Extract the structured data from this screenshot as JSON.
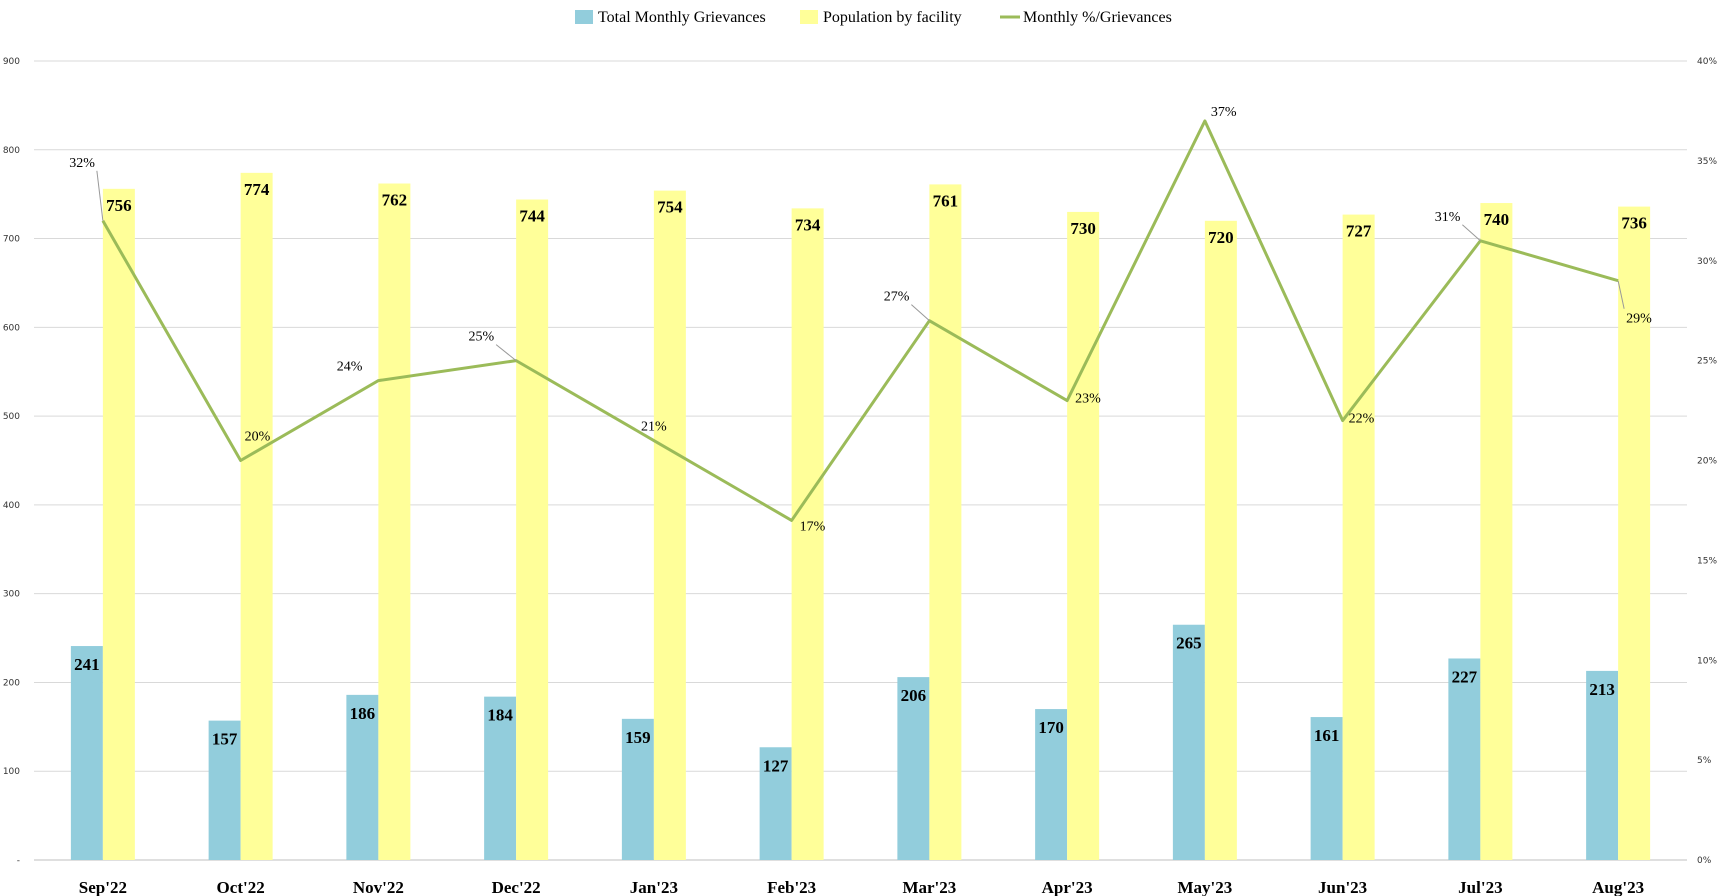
{
  "chart_data": {
    "type": "bar",
    "title": "",
    "xlabel": "",
    "ylabel": "",
    "y2label": "",
    "categories": [
      "Sep'22",
      "Oct'22",
      "Nov'22",
      "Dec'22",
      "Jan'23",
      "Feb'23",
      "Mar'23",
      "Apr'23",
      "May'23",
      "Jun'23",
      "Jul'23",
      "Aug'23"
    ],
    "series": [
      {
        "name": "Total Monthly Grievances",
        "type": "bar",
        "axis": "left",
        "color": "#92cddc",
        "values": [
          241,
          157,
          186,
          184,
          159,
          127,
          206,
          170,
          265,
          161,
          227,
          213
        ]
      },
      {
        "name": "Population by facility",
        "type": "bar",
        "axis": "left",
        "color": "#ffff99",
        "values": [
          756,
          774,
          762,
          744,
          754,
          734,
          761,
          730,
          720,
          727,
          740,
          736
        ]
      },
      {
        "name": "Monthly %/Grievances",
        "type": "line",
        "axis": "right",
        "color": "#9bbb59",
        "values": [
          0.32,
          0.2,
          0.24,
          0.25,
          0.21,
          0.17,
          0.27,
          0.23,
          0.37,
          0.22,
          0.31,
          0.29
        ],
        "labels": [
          "32%",
          "20%",
          "24%",
          "25%",
          "21%",
          "17%",
          "27%",
          "23%",
          "37%",
          "22%",
          "31%",
          "29%"
        ]
      }
    ],
    "ylim": [
      0,
      900
    ],
    "yticks": [
      0,
      100,
      200,
      300,
      400,
      500,
      600,
      700,
      800,
      900
    ],
    "ytick_labels": [
      "-",
      "100",
      "200",
      "300",
      "400",
      "500",
      "600",
      "700",
      "800",
      "900"
    ],
    "y2lim": [
      0,
      0.4
    ],
    "y2ticks": [
      0,
      0.05,
      0.1,
      0.15,
      0.2,
      0.25,
      0.3,
      0.35,
      0.4
    ],
    "y2tick_labels": [
      "0%",
      "5%",
      "10%",
      "15%",
      "20%",
      "25%",
      "30%",
      "35%",
      "40%"
    ],
    "grid": true,
    "legend": "top-center"
  }
}
